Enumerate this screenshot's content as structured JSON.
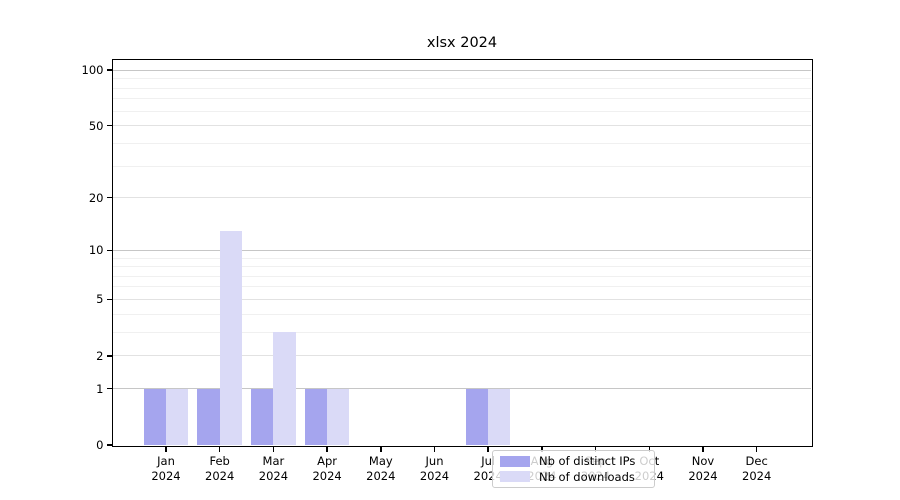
{
  "chart_data": {
    "type": "bar",
    "title": "xlsx 2024",
    "categories": [
      "Jan 2024",
      "Feb 2024",
      "Mar 2024",
      "Apr 2024",
      "May 2024",
      "Jun 2024",
      "Jul 2024",
      "Aug 2024",
      "Sep 2024",
      "Oct 2024",
      "Nov 2024",
      "Dec 2024"
    ],
    "series": [
      {
        "name": "Nb of distinct IPs",
        "color": "#a5a5ee",
        "values": [
          1,
          1,
          1,
          1,
          0,
          0,
          1,
          0,
          0,
          0,
          0,
          0
        ]
      },
      {
        "name": "Nb of downloads",
        "color": "#dadaf7",
        "values": [
          1,
          13,
          3,
          1,
          0,
          0,
          1,
          0,
          0,
          0,
          0,
          0
        ]
      }
    ],
    "xlabel": "",
    "ylabel": "",
    "yscale": "log1p",
    "ylim": [
      0,
      103
    ],
    "yticks": [
      0,
      1,
      2,
      5,
      10,
      20,
      50,
      100
    ],
    "ytick_strong": [
      1,
      10,
      100
    ],
    "minor_gridlines": [
      3,
      4,
      6,
      7,
      8,
      9,
      30,
      40,
      60,
      70,
      80,
      90
    ],
    "grid": "on",
    "legend_position": "lower center",
    "legend_labels": [
      "Nb of distinct IPs",
      "Nb of downloads"
    ]
  }
}
